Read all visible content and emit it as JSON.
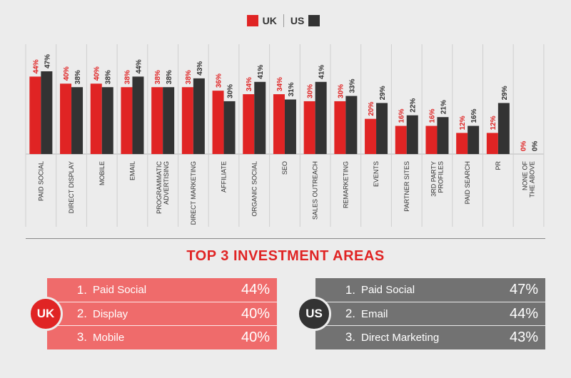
{
  "colors": {
    "uk": "#e02424",
    "us": "#333333"
  },
  "legend": {
    "uk": "UK",
    "us": "US"
  },
  "chart_data": {
    "type": "bar",
    "categories": [
      "PAID SOCIAL",
      "DIRECT DISPLAY",
      "MOBILE",
      "EMAIL",
      "PROGRAMMATIC ADVERTISING",
      "DIRECT MARKETING",
      "AFFILIATE",
      "ORGANIC SOCIAL",
      "SEO",
      "SALES OUTREACH",
      "REMARKETING",
      "EVENTS",
      "PARTNER SITES",
      "3RD PARTY PROFILES",
      "PAID SEARCH",
      "PR",
      "NONE OF THE ABOVE"
    ],
    "series": [
      {
        "name": "UK",
        "values": [
          44,
          40,
          40,
          38,
          38,
          38,
          36,
          34,
          34,
          30,
          30,
          20,
          16,
          16,
          12,
          12,
          0
        ]
      },
      {
        "name": "US",
        "values": [
          47,
          38,
          38,
          44,
          38,
          43,
          30,
          41,
          31,
          41,
          33,
          29,
          22,
          21,
          16,
          29,
          0
        ]
      }
    ],
    "ylim": [
      0,
      47
    ]
  },
  "section_title": "TOP 3 INVESTMENT AREAS",
  "uk_panel": {
    "badge": "UK",
    "items": [
      {
        "num": "1.",
        "label": "Paid Social",
        "pct": "44%"
      },
      {
        "num": "2.",
        "label": "Display",
        "pct": "40%"
      },
      {
        "num": "3.",
        "label": "Mobile",
        "pct": "40%"
      }
    ]
  },
  "us_panel": {
    "badge": "US",
    "items": [
      {
        "num": "1.",
        "label": "Paid Social",
        "pct": "47%"
      },
      {
        "num": "2.",
        "label": "Email",
        "pct": "44%"
      },
      {
        "num": "3.",
        "label": "Direct Marketing",
        "pct": "43%"
      }
    ]
  }
}
